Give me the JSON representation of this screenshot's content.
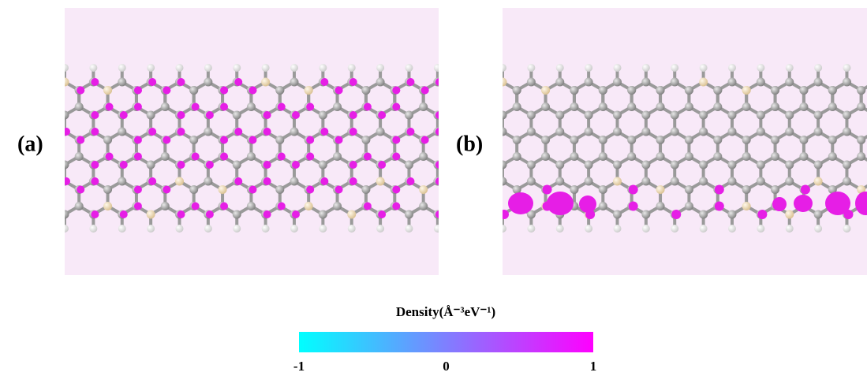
{
  "panels": [
    {
      "label": "(a)"
    },
    {
      "label": "(b)"
    }
  ],
  "colorbar": {
    "title": "Density(Å⁻³eV⁻¹)",
    "lim": [
      -1,
      1
    ],
    "ticks": [
      -1,
      0,
      1
    ]
  }
}
